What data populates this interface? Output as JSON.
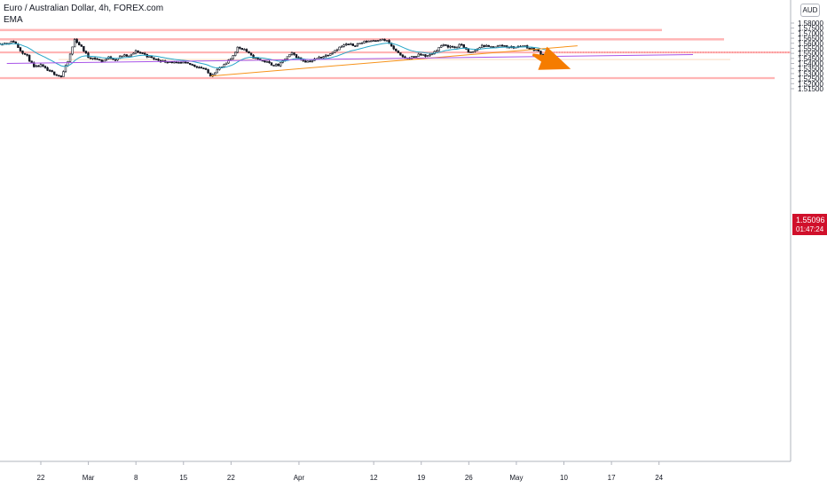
{
  "header": {
    "title": "Euro / Australian Dollar, 4h, FOREX.com",
    "indicator": "EMA",
    "currency_button": "AUD"
  },
  "price_tag": {
    "price": "1.55096",
    "countdown": "01:47:24"
  },
  "colors": {
    "bull": "#ffffff",
    "bear": "#131722",
    "ema": "#26a6c8",
    "zone_resistance": "#ff9c9c",
    "zone_support": "#f8c9a0",
    "trend_up": "#f7931a",
    "trend_purple": "#a855e8",
    "arrow": "#f57c00",
    "price_tag": "#d0102b"
  },
  "chart_data": {
    "type": "candlestick",
    "symbol": "EURAUD",
    "interval": "4h",
    "y_axis": {
      "ticks": [
        "1.58000",
        "1.57500",
        "1.57000",
        "1.56500",
        "1.56000",
        "1.55500",
        "1.55000",
        "1.54500",
        "1.54000",
        "1.53500",
        "1.53000",
        "1.52500",
        "1.52000",
        "1.51500"
      ],
      "ylim": [
        1.513,
        1.5855
      ]
    },
    "x_axis": {
      "ticks": [
        "22",
        "Mar",
        "8",
        "15",
        "22",
        "Apr",
        "12",
        "19",
        "26",
        "May",
        "10",
        "17",
        "24"
      ]
    },
    "price_path": [
      [
        "Feb 17",
        1.56
      ],
      [
        "Feb 18",
        1.562
      ],
      [
        "Feb 19",
        1.553
      ],
      [
        "Feb 20",
        1.547
      ],
      [
        "Feb 21",
        1.536
      ],
      [
        "Feb 22",
        1.538
      ],
      [
        "Feb 23",
        1.533
      ],
      [
        "Feb 24",
        1.53
      ],
      [
        "Feb 25",
        1.527
      ],
      [
        "Feb 26",
        1.542
      ],
      [
        "Feb 27",
        1.564
      ],
      [
        "Feb 28",
        1.556
      ],
      [
        "Mar 1",
        1.546
      ],
      [
        "Mar 2",
        1.545
      ],
      [
        "Mar 3",
        1.542
      ],
      [
        "Mar 4",
        1.546
      ],
      [
        "Mar 5",
        1.544
      ],
      [
        "Mar 6",
        1.548
      ],
      [
        "Mar 7",
        1.547
      ],
      [
        "Mar 8",
        1.552
      ],
      [
        "Mar 9",
        1.55
      ],
      [
        "Mar 10",
        1.546
      ],
      [
        "Mar 11",
        1.544
      ],
      [
        "Mar 12",
        1.542
      ],
      [
        "Mar 13",
        1.542
      ],
      [
        "Mar 14",
        1.54
      ],
      [
        "Mar 15",
        1.5405
      ],
      [
        "Mar 16",
        1.539
      ],
      [
        "Mar 17",
        1.537
      ],
      [
        "Mar 18",
        1.535
      ],
      [
        "Mar 19",
        1.528
      ],
      [
        "Mar 20",
        1.534
      ],
      [
        "Mar 21",
        1.538
      ],
      [
        "Mar 22",
        1.545
      ],
      [
        "Mar 23",
        1.556
      ],
      [
        "Mar 24",
        1.554
      ],
      [
        "Mar 25",
        1.547
      ],
      [
        "Mar 26",
        1.544
      ],
      [
        "Mar 27",
        1.542
      ],
      [
        "Mar 28",
        1.539
      ],
      [
        "Mar 29",
        1.538
      ],
      [
        "Mar 30",
        1.545
      ],
      [
        "Mar 31",
        1.55
      ],
      [
        "Apr 1",
        1.545
      ],
      [
        "Apr 2",
        1.542
      ],
      [
        "Apr 3",
        1.543
      ],
      [
        "Apr 4",
        1.546
      ],
      [
        "Apr 5",
        1.548
      ],
      [
        "Apr 6",
        1.552
      ],
      [
        "Apr 7",
        1.556
      ],
      [
        "Apr 8",
        1.559
      ],
      [
        "Apr 9",
        1.558
      ],
      [
        "Apr 10",
        1.56
      ],
      [
        "Apr 11",
        1.562
      ],
      [
        "Apr 12",
        1.563
      ],
      [
        "Apr 13",
        1.564
      ],
      [
        "Apr 14",
        1.562
      ],
      [
        "Apr 15",
        1.554
      ],
      [
        "Apr 16",
        1.547
      ],
      [
        "Apr 17",
        1.545
      ],
      [
        "Apr 18",
        1.547
      ],
      [
        "Apr 19",
        1.549
      ],
      [
        "Apr 20",
        1.547
      ],
      [
        "Apr 21",
        1.552
      ],
      [
        "Apr 22",
        1.558
      ],
      [
        "Apr 23",
        1.557
      ],
      [
        "Apr 24",
        1.556
      ],
      [
        "Apr 25",
        1.559
      ],
      [
        "Apr 26",
        1.55
      ],
      [
        "Apr 27",
        1.553
      ],
      [
        "Apr 28",
        1.558
      ],
      [
        "Apr 29",
        1.556
      ],
      [
        "Apr 30",
        1.557
      ],
      [
        "May 1",
        1.558
      ],
      [
        "May 2",
        1.556
      ],
      [
        "May 3",
        1.556
      ],
      [
        "May 4",
        1.558
      ],
      [
        "May 5",
        1.555
      ],
      [
        "May 6",
        1.553
      ],
      [
        "May 7",
        1.548
      ],
      [
        "May 7b",
        1.551
      ]
    ],
    "last_price": 1.55096,
    "annotations": {
      "resistance_zones": [
        [
          1.572,
          1.5742
        ],
        [
          1.5628,
          1.565
        ],
        [
          1.55,
          1.5519
        ],
        [
          1.5245,
          1.5265
        ]
      ],
      "support_zone": [
        1.5435,
        1.5443
      ],
      "trendlines": [
        {
          "from": [
            "Mar 19",
            1.5275
          ],
          "to": [
            "May 12",
            1.5575
          ]
        },
        {
          "from": [
            "Feb 17",
            1.54
          ],
          "to": [
            "May 29",
            1.5488
          ]
        }
      ],
      "projection_arrow": {
        "from": [
          "May 5",
          1.5488
        ],
        "to": [
          "May 11",
          1.5345
        ]
      }
    }
  }
}
